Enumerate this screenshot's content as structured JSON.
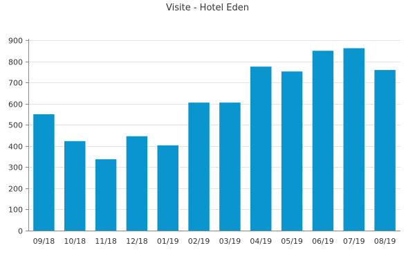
{
  "chart_data": {
    "type": "bar",
    "title": "Visite - Hotel Eden",
    "xlabel": "",
    "ylabel": "",
    "categories": [
      "09/18",
      "10/18",
      "11/18",
      "12/18",
      "01/19",
      "02/19",
      "03/19",
      "04/19",
      "05/19",
      "06/19",
      "07/19",
      "08/19"
    ],
    "values": [
      550,
      423,
      337,
      446,
      403,
      605,
      605,
      775,
      752,
      850,
      862,
      759
    ],
    "ylim": [
      0,
      900
    ],
    "yticks": [
      0,
      100,
      200,
      300,
      400,
      500,
      600,
      700,
      800,
      900
    ],
    "grid": true,
    "legend": "none",
    "bar_color": "#0a95cf",
    "grid_color": "#e3e3e3",
    "axis_color": "#888888",
    "text_color": "#333333"
  }
}
